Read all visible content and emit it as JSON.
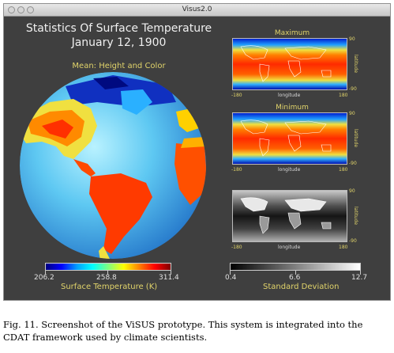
{
  "window": {
    "title": "Visus2.0",
    "traffic_lights": [
      "close-button",
      "minimize-button",
      "zoom-button"
    ]
  },
  "view": {
    "title_line1": "Statistics Of Surface Temperature",
    "title_line2": "January 12, 1900",
    "globe_label": "Mean: Height and Color"
  },
  "colorbar_main": {
    "min": "206.2",
    "mid": "258.8",
    "max": "311.4",
    "title": "Surface Temperature (K)"
  },
  "colorbar_sd": {
    "min": "0.4",
    "mid": "6.6",
    "max": "12.7",
    "title": "Standard Deviation"
  },
  "panels": {
    "max": {
      "title": "Maximum",
      "lon_min": "-180",
      "lon_max": "180",
      "lat_max": "90",
      "lat_min": "-90",
      "xlabel": "longitude",
      "ylabel": "latitude"
    },
    "min": {
      "title": "Minimum",
      "lon_min": "-180",
      "lon_max": "180",
      "lat_max": "90",
      "lat_min": "-90",
      "xlabel": "longitude",
      "ylabel": "latitude"
    },
    "sd": {
      "lon_min": "-180",
      "lon_max": "180",
      "lat_max": "90",
      "lat_min": "-90",
      "xlabel": "longitude",
      "ylabel": "latitude"
    }
  },
  "caption": {
    "text": "Fig. 11.   Screenshot of the ViSUS prototype. This system is integrated into the CDAT framework used by climate scientists."
  }
}
